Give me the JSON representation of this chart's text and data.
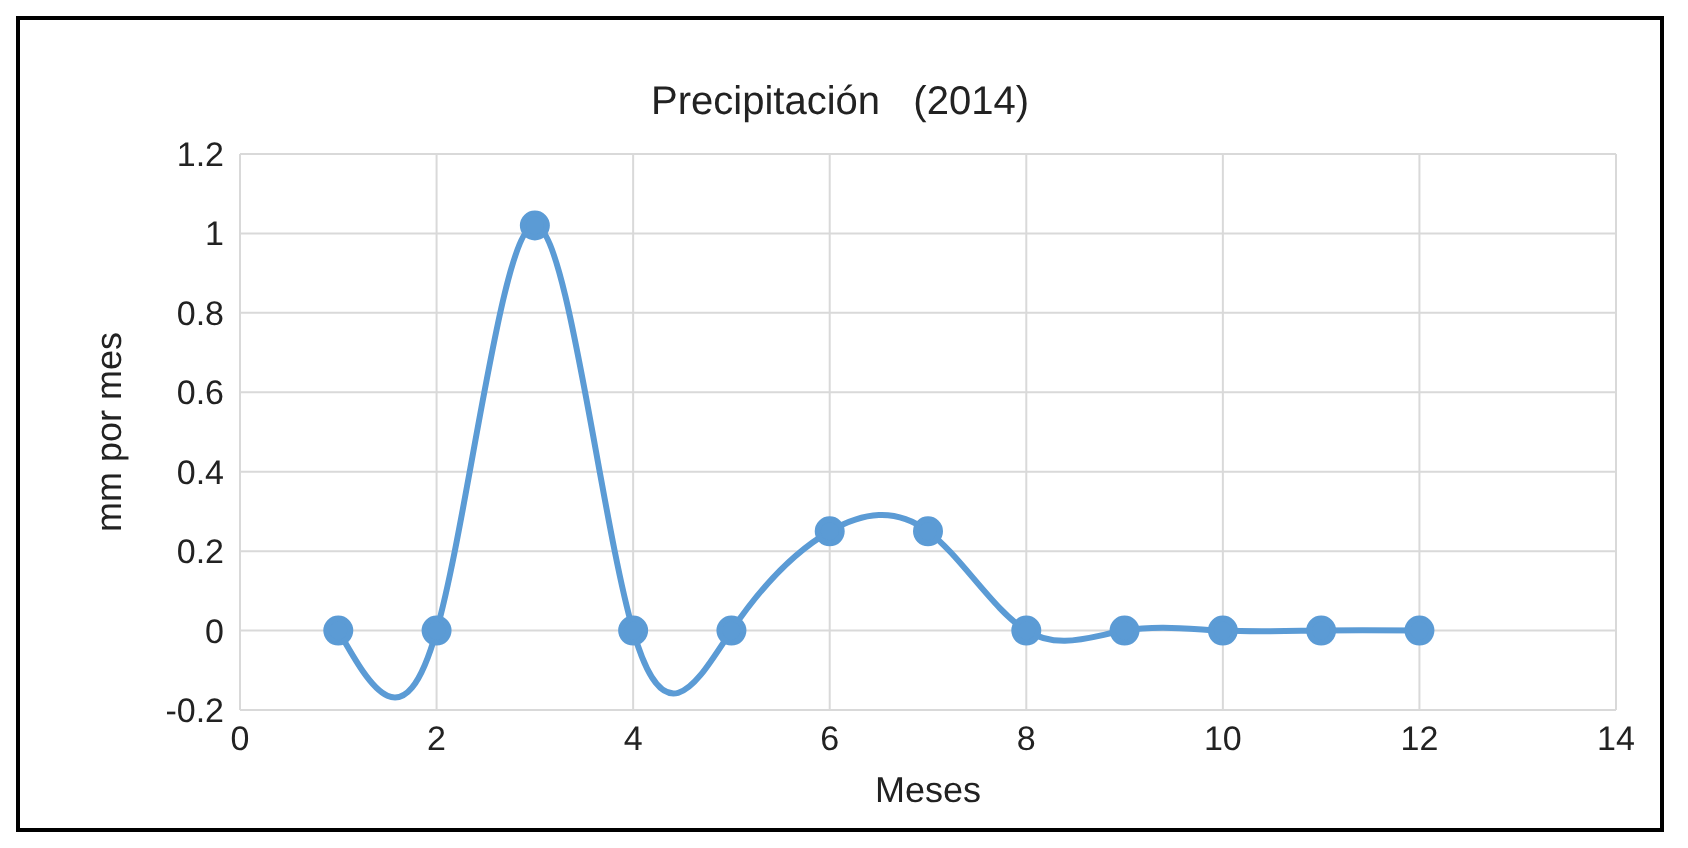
{
  "chart_data": {
    "type": "line",
    "title": "Precipitación   (2014)",
    "xlabel": "Meses",
    "ylabel": "mm  por mes",
    "x": [
      1,
      2,
      3,
      4,
      5,
      6,
      7,
      8,
      9,
      10,
      11,
      12
    ],
    "series": [
      {
        "color": "#5b9bd5",
        "values": [
          0,
          0,
          1.02,
          0,
          0,
          0.25,
          0.25,
          0,
          0,
          0,
          0,
          0
        ]
      }
    ],
    "xlim": [
      0,
      14
    ],
    "xticks": [
      0,
      2,
      4,
      6,
      8,
      10,
      12,
      14
    ],
    "ylim": [
      -0.2,
      1.2
    ],
    "yticks": [
      -0.2,
      0,
      0.2,
      0.4,
      0.6,
      0.8,
      1,
      1.2
    ],
    "grid": true,
    "marker": "circle",
    "line_style": "solid",
    "legend": false
  }
}
